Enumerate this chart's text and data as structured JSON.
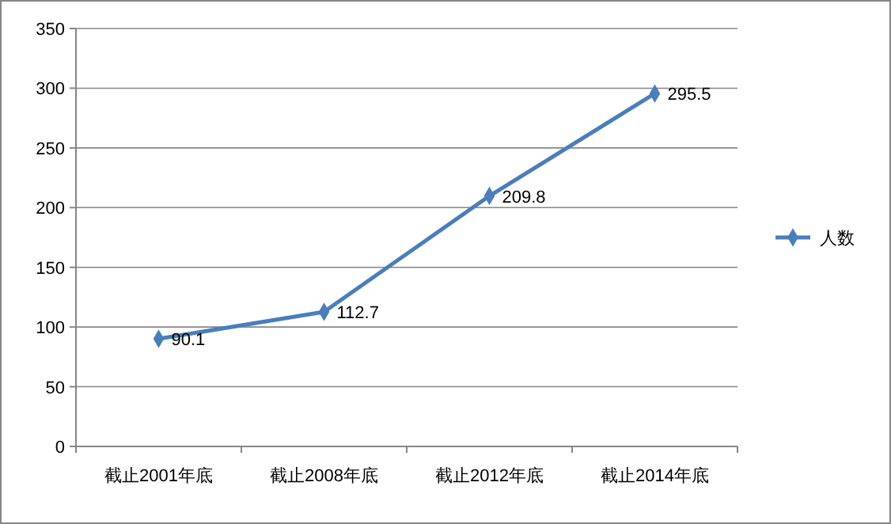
{
  "chart_data": {
    "type": "line",
    "categories": [
      "截止2001年底",
      "截止2008年底",
      "截止2012年底",
      "截止2014年底"
    ],
    "series": [
      {
        "name": "人数",
        "color": "#4a7ebb",
        "values": [
          90.1,
          112.7,
          209.8,
          295.5
        ]
      }
    ],
    "ylim": [
      0,
      350
    ],
    "yticks": [
      0,
      50,
      100,
      150,
      200,
      250,
      300,
      350
    ],
    "grid": "y",
    "legend": "right",
    "marker": "diamond",
    "data_labels": true
  }
}
